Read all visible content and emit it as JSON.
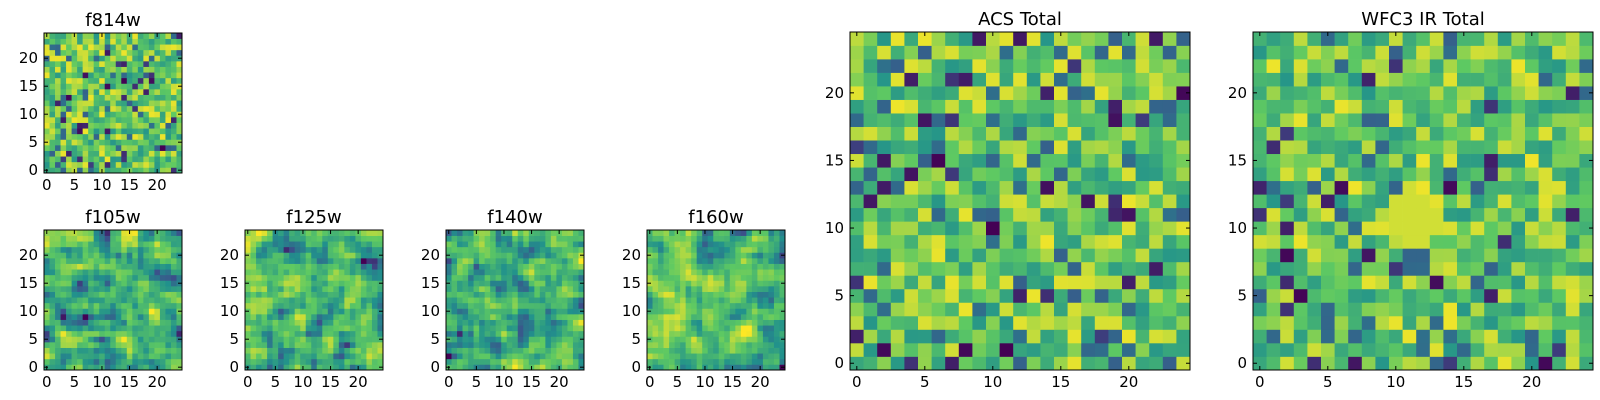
{
  "chart_data": [
    {
      "type": "heatmap",
      "title": "f814w",
      "grid_size": [
        25,
        25
      ],
      "xlim": [
        -0.5,
        24.5
      ],
      "ylim": [
        -0.5,
        24.5
      ],
      "x_ticks": [
        0,
        5,
        10,
        15,
        20
      ],
      "y_ticks": [
        0,
        5,
        10,
        15,
        20
      ],
      "pattern": "uncorrelated noise",
      "seed": 11,
      "colormap": "viridis"
    },
    {
      "type": "heatmap",
      "title": "f105w",
      "grid_size": [
        25,
        25
      ],
      "xlim": [
        -0.5,
        24.5
      ],
      "ylim": [
        -0.5,
        24.5
      ],
      "x_ticks": [
        0,
        5,
        10,
        15,
        20
      ],
      "y_ticks": [
        0,
        5,
        10,
        15,
        20
      ],
      "pattern": "smoothed noise",
      "seed": 23,
      "colormap": "viridis"
    },
    {
      "type": "heatmap",
      "title": "f125w",
      "grid_size": [
        25,
        25
      ],
      "xlim": [
        -0.5,
        24.5
      ],
      "ylim": [
        -0.5,
        24.5
      ],
      "x_ticks": [
        0,
        5,
        10,
        15,
        20
      ],
      "y_ticks": [
        0,
        5,
        10,
        15,
        20
      ],
      "pattern": "smoothed noise",
      "seed": 37,
      "colormap": "viridis"
    },
    {
      "type": "heatmap",
      "title": "f140w",
      "grid_size": [
        25,
        25
      ],
      "xlim": [
        -0.5,
        24.5
      ],
      "ylim": [
        -0.5,
        24.5
      ],
      "x_ticks": [
        0,
        5,
        10,
        15,
        20
      ],
      "y_ticks": [
        0,
        5,
        10,
        15,
        20
      ],
      "pattern": "smoothed noise",
      "seed": 41,
      "colormap": "viridis"
    },
    {
      "type": "heatmap",
      "title": "f160w",
      "grid_size": [
        25,
        25
      ],
      "xlim": [
        -0.5,
        24.5
      ],
      "ylim": [
        -0.5,
        24.5
      ],
      "x_ticks": [
        0,
        5,
        10,
        15,
        20
      ],
      "y_ticks": [
        0,
        5,
        10,
        15,
        20
      ],
      "pattern": "smoothed noise",
      "seed": 53,
      "colormap": "viridis"
    },
    {
      "type": "heatmap",
      "title": "ACS Total",
      "grid_size": [
        25,
        25
      ],
      "xlim": [
        -0.5,
        24.5
      ],
      "ylim": [
        -0.5,
        24.5
      ],
      "x_ticks": [
        0,
        5,
        10,
        15,
        20
      ],
      "y_ticks": [
        0,
        5,
        10,
        15,
        20
      ],
      "pattern": "uncorrelated noise",
      "seed": 67,
      "colormap": "viridis"
    },
    {
      "type": "heatmap",
      "title": "WFC3 IR Total",
      "grid_size": [
        25,
        25
      ],
      "xlim": [
        -0.5,
        24.5
      ],
      "ylim": [
        -0.5,
        24.5
      ],
      "x_ticks": [
        0,
        5,
        10,
        15,
        20
      ],
      "y_ticks": [
        0,
        5,
        10,
        15,
        20
      ],
      "pattern": "uncorrelated noise with central bright source",
      "seed": 79,
      "colormap": "viridis"
    }
  ],
  "colors": {
    "viridis_stops": [
      "#440154",
      "#3b528b",
      "#21918c",
      "#5ec962",
      "#fde725"
    ]
  }
}
